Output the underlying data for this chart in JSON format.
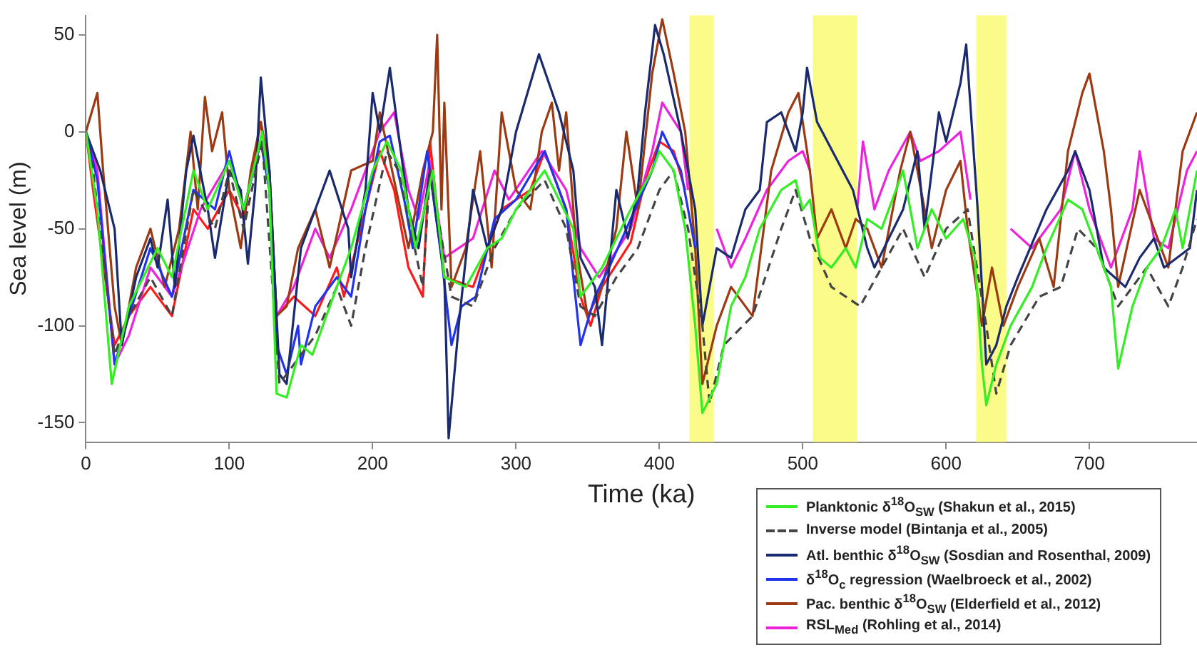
{
  "chart_data": {
    "type": "line",
    "xlabel": "Time (ka)",
    "ylabel": "Sea level (m)",
    "xlim": [
      0,
      775
    ],
    "ylim": [
      -160,
      60
    ],
    "xticks": [
      0,
      100,
      200,
      300,
      400,
      500,
      600,
      700
    ],
    "yticks": [
      -150,
      -100,
      -50,
      0,
      50
    ],
    "grid": false,
    "legend": "bottom right",
    "marker": "none",
    "bands": [
      {
        "axis": "x",
        "from": 421,
        "to": 438,
        "color": "#fbfb8a"
      },
      {
        "axis": "x",
        "from": 507,
        "to": 538,
        "color": "#fbfb8a"
      },
      {
        "axis": "x",
        "from": 621,
        "to": 642,
        "color": "#fbfb8a"
      }
    ],
    "series": [
      {
        "name": "Planktonic δ$^{18}$O$_{SW}$ (Shakun et al., 2015)",
        "color": "#33ee22",
        "line_style": "solid",
        "x": [
          0,
          8,
          18,
          30,
          50,
          60,
          75,
          85,
          100,
          110,
          120,
          123,
          128,
          133,
          140,
          150,
          158,
          175,
          185,
          200,
          210,
          220,
          230,
          242,
          250,
          265,
          280,
          290,
          300,
          310,
          320,
          340,
          345,
          360,
          380,
          395,
          400,
          410,
          418,
          425,
          430,
          440,
          450,
          460,
          470,
          485,
          495,
          500,
          505,
          512,
          520,
          530,
          537,
          545,
          555,
          565,
          570,
          580,
          590,
          600,
          612,
          620,
          625,
          628,
          635,
          645,
          660,
          670,
          685,
          695,
          705,
          715,
          720,
          730,
          740,
          750,
          760,
          765,
          775
        ],
        "values": [
          0,
          -40,
          -130,
          -90,
          -60,
          -75,
          -20,
          -40,
          -15,
          -40,
          -10,
          0,
          -30,
          -135,
          -137,
          -110,
          -115,
          -80,
          -60,
          -20,
          -5,
          -20,
          -60,
          -20,
          -75,
          -80,
          -60,
          -55,
          -40,
          -30,
          -20,
          -50,
          -85,
          -70,
          -40,
          -20,
          -10,
          -20,
          -50,
          -100,
          -145,
          -130,
          -90,
          -75,
          -50,
          -30,
          -25,
          -40,
          -35,
          -65,
          -70,
          -60,
          -70,
          -45,
          -50,
          -30,
          -20,
          -60,
          -40,
          -55,
          -45,
          -65,
          -120,
          -141,
          -120,
          -100,
          -80,
          -60,
          -35,
          -40,
          -60,
          -80,
          -122,
          -90,
          -70,
          -60,
          -40,
          -60,
          -20
        ]
      },
      {
        "name": "Inverse model (Bintanja et al., 2005)",
        "color": "#444444",
        "line_style": "dashed",
        "x": [
          0,
          5,
          20,
          30,
          45,
          60,
          75,
          90,
          100,
          110,
          120,
          123,
          135,
          145,
          160,
          175,
          185,
          195,
          210,
          218,
          235,
          240,
          255,
          270,
          285,
          300,
          320,
          335,
          345,
          355,
          370,
          385,
          400,
          410,
          420,
          430,
          435,
          445,
          465,
          485,
          495,
          505,
          520,
          540,
          555,
          570,
          585,
          600,
          615,
          628,
          635,
          645,
          665,
          680,
          692,
          705,
          720,
          730,
          740,
          755,
          765,
          775
        ],
        "values": [
          0,
          -20,
          -115,
          -95,
          -75,
          -95,
          -30,
          -50,
          -20,
          -50,
          -15,
          -5,
          -130,
          -120,
          -105,
          -80,
          -100,
          -60,
          -10,
          -20,
          -80,
          -20,
          -85,
          -90,
          -60,
          -40,
          -25,
          -50,
          -90,
          -95,
          -75,
          -60,
          -30,
          -20,
          -50,
          -100,
          -140,
          -110,
          -95,
          -50,
          -30,
          -55,
          -80,
          -90,
          -70,
          -50,
          -75,
          -50,
          -40,
          -100,
          -135,
          -110,
          -85,
          -80,
          -50,
          -60,
          -90,
          -80,
          -70,
          -90,
          -70,
          -45
        ]
      },
      {
        "name": "Atl. benthic δ$^{18}$O$_{SW}$ (Sosdian and Rosenthal, 2009)",
        "color": "#1a2a6e",
        "line_style": "solid",
        "x": [
          0,
          10,
          20,
          25,
          35,
          45,
          50,
          57,
          62,
          70,
          75,
          85,
          90,
          100,
          108,
          113,
          118,
          122,
          128,
          135,
          140,
          150,
          170,
          183,
          185,
          195,
          200,
          205,
          212,
          225,
          232,
          240,
          250,
          253,
          260,
          270,
          280,
          290,
          300,
          316,
          330,
          340,
          345,
          355,
          360,
          370,
          378,
          385,
          390,
          397,
          403,
          415,
          425,
          430,
          440,
          450,
          460,
          470,
          475,
          485,
          495,
          500,
          503,
          510,
          535,
          545,
          550,
          570,
          580,
          585,
          595,
          600,
          610,
          614,
          622,
          628,
          635,
          642,
          650,
          670,
          685,
          690,
          700,
          710,
          725,
          735,
          745,
          752,
          770,
          775
        ],
        "values": [
          0,
          -20,
          -50,
          -110,
          -75,
          -55,
          -70,
          -35,
          -80,
          -20,
          -2,
          -40,
          -65,
          -20,
          -30,
          -68,
          -30,
          28,
          -20,
          -125,
          -130,
          -60,
          -20,
          -50,
          -75,
          -30,
          20,
          0,
          33,
          -40,
          -60,
          -20,
          -75,
          -158,
          -100,
          -30,
          -60,
          -40,
          0,
          40,
          10,
          -20,
          -65,
          -80,
          -110,
          -30,
          -55,
          -30,
          10,
          55,
          40,
          0,
          -40,
          -100,
          -60,
          -65,
          -40,
          -30,
          5,
          10,
          -10,
          10,
          33,
          5,
          -30,
          -60,
          -70,
          -40,
          -10,
          -50,
          10,
          -5,
          25,
          45,
          -40,
          -120,
          -110,
          -90,
          -75,
          -40,
          -20,
          -10,
          -30,
          -70,
          -80,
          -65,
          -55,
          -70,
          -60,
          -30
        ]
      },
      {
        "name": "δ$^{18}$O$_{c}$ regression (Waelbroeck et al., 2002)",
        "color": "#2233ee",
        "line_style": "solid",
        "x": [
          0,
          8,
          20,
          30,
          45,
          60,
          75,
          90,
          100,
          110,
          122,
          128,
          133,
          140,
          148,
          150,
          160,
          175,
          185,
          195,
          205,
          212,
          222,
          228,
          238,
          248,
          255,
          262,
          272,
          285,
          300,
          320,
          335,
          345,
          355,
          365,
          380,
          395,
          402,
          415,
          425
        ],
        "values": [
          0,
          -25,
          -120,
          -95,
          -60,
          -85,
          -30,
          -40,
          -10,
          -40,
          -5,
          -30,
          -110,
          -125,
          -100,
          -120,
          -90,
          -75,
          -85,
          -40,
          -5,
          -2,
          -35,
          -60,
          -10,
          -65,
          -110,
          -90,
          -85,
          -45,
          -35,
          -10,
          -40,
          -110,
          -85,
          -70,
          -45,
          -20,
          0,
          -20,
          -60
        ]
      },
      {
        "name": "Pac. benthic δ$^{18}$O$_{SW}$ (Elderfield et al., 2012)",
        "color": "#9c3a14",
        "line_style": "solid",
        "x": [
          0,
          8,
          12,
          20,
          25,
          35,
          45,
          55,
          65,
          73,
          78,
          83,
          88,
          95,
          100,
          108,
          115,
          122,
          128,
          133,
          140,
          148,
          160,
          170,
          185,
          200,
          205,
          215,
          225,
          235,
          242,
          245,
          248,
          250,
          255,
          265,
          275,
          283,
          290,
          300,
          310,
          318,
          325,
          330,
          335,
          342,
          350,
          360,
          370,
          377,
          385,
          395,
          402,
          410,
          418,
          425,
          430,
          440,
          450,
          465,
          478,
          490,
          497,
          505,
          510,
          520,
          530,
          537,
          545,
          555,
          568,
          575,
          585,
          590,
          600,
          610,
          615,
          625,
          632,
          640,
          650,
          665,
          675,
          685,
          695,
          700,
          710,
          715,
          720,
          735,
          745,
          755,
          765,
          775
        ],
        "values": [
          0,
          20,
          -20,
          -90,
          -110,
          -70,
          -50,
          -80,
          -50,
          0,
          -40,
          18,
          -10,
          10,
          -30,
          -60,
          -20,
          5,
          -20,
          -95,
          -90,
          -60,
          -40,
          -70,
          -20,
          -15,
          10,
          -25,
          -60,
          -20,
          0,
          50,
          -40,
          15,
          -80,
          -60,
          -10,
          -70,
          10,
          -30,
          -40,
          0,
          15,
          -20,
          10,
          -60,
          -95,
          -80,
          -50,
          0,
          -40,
          30,
          58,
          30,
          0,
          -60,
          -130,
          -100,
          -80,
          -95,
          -20,
          10,
          20,
          -20,
          -55,
          -40,
          -60,
          -45,
          -50,
          -70,
          -20,
          0,
          -40,
          -60,
          -30,
          -15,
          -50,
          -100,
          -70,
          -100,
          -80,
          -55,
          -80,
          -10,
          20,
          30,
          -10,
          -40,
          -80,
          -30,
          -50,
          -70,
          -10,
          10
        ]
      },
      {
        "name": "RSL$_{Med}$ (Rohling et al., 2014)",
        "color": "#ee22dd",
        "line_style": "solid",
        "x": [
          0,
          8,
          20,
          30,
          45,
          60,
          80,
          100,
          110,
          122,
          128,
          133,
          145,
          160,
          170,
          185,
          205,
          215,
          225,
          232,
          240,
          250,
          270,
          285,
          295,
          318,
          335,
          345,
          358,
          380,
          395,
          402,
          415,
          420,
          430,
          440,
          450,
          460,
          475,
          490,
          500,
          505,
          520,
          538,
          542,
          550,
          560,
          575,
          582,
          595,
          610,
          617,
          630,
          645,
          660,
          680,
          690,
          700,
          715,
          730,
          735,
          745,
          755,
          768,
          775
        ],
        "values": [
          0,
          -20,
          -120,
          -105,
          -70,
          -85,
          -40,
          -15,
          -40,
          -5,
          -30,
          -95,
          -80,
          -50,
          -65,
          -40,
          0,
          10,
          -30,
          -45,
          -15,
          -65,
          -55,
          -20,
          -35,
          -10,
          -30,
          -60,
          -75,
          -50,
          -10,
          15,
          0,
          -30,
          null,
          -50,
          -70,
          -55,
          -30,
          -15,
          -10,
          -20,
          null,
          -40,
          -5,
          -40,
          -20,
          0,
          -15,
          -10,
          0,
          -35,
          null,
          -50,
          -60,
          -40,
          -10,
          -40,
          -70,
          -40,
          -10,
          -55,
          -60,
          -20,
          -10
        ]
      },
      {
        "color": "#ff1a1a",
        "line_style": "solid",
        "x": [
          0,
          5,
          20,
          30,
          45,
          60,
          75,
          85,
          100,
          110,
          122,
          128,
          133,
          145,
          160,
          175,
          180,
          195,
          205,
          215,
          225,
          235,
          240,
          250,
          270,
          290,
          310,
          320,
          335,
          345,
          352,
          360,
          380,
          390,
          400,
          410,
          418
        ],
        "values": [
          0,
          -30,
          -110,
          -95,
          -80,
          -95,
          -40,
          -50,
          -30,
          -45,
          5,
          -20,
          -95,
          -85,
          -95,
          -70,
          -85,
          -40,
          -10,
          -30,
          -70,
          -85,
          -5,
          -75,
          -80,
          -40,
          -30,
          -10,
          -40,
          -85,
          -100,
          -80,
          -57,
          -25,
          -5,
          -10,
          -30
        ]
      }
    ]
  }
}
